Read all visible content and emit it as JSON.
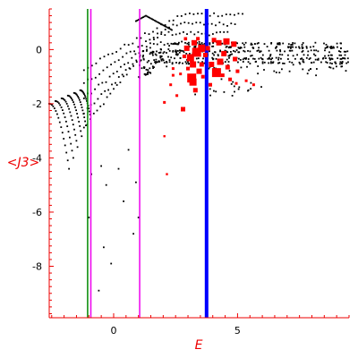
{
  "chart_data": {
    "type": "scatter",
    "xlabel": "E",
    "ylabel": "<J3>",
    "xlim": [
      -2.6,
      9.5
    ],
    "ylim": [
      -9.9,
      1.5
    ],
    "x_ticks": [
      0,
      5
    ],
    "y_ticks": [
      0,
      -2,
      -4,
      -6,
      -8
    ],
    "grid": false,
    "colors": {
      "axes": "#ee0000",
      "black_points": "#000000",
      "red_points": "#ff0000",
      "green_line": "#008800",
      "magenta_line": "#ee00ee",
      "blue_line": "#0000ff"
    },
    "vertical_lines": [
      {
        "name": "",
        "x": -1.05,
        "color": "#008800",
        "width": 1.5
      },
      {
        "name": "",
        "x": -0.92,
        "color": "#ee00ee",
        "width": 1.5
      },
      {
        "name": "",
        "x": 1.05,
        "color": "#ee00ee",
        "width": 1.5
      },
      {
        "name": "",
        "x": 3.75,
        "color": "#0000ff",
        "width": 4
      }
    ],
    "red_points": [
      [
        2.8,
        -2.2,
        2.5
      ],
      [
        3.2,
        -1.2,
        4
      ],
      [
        3.15,
        -1.05,
        5
      ],
      [
        3.45,
        -0.8,
        3
      ],
      [
        3.2,
        -0.55,
        3.5
      ],
      [
        3.1,
        -0.3,
        4
      ],
      [
        3.35,
        -0.1,
        5
      ],
      [
        3.55,
        0.05,
        4
      ],
      [
        3.25,
        0.25,
        3
      ],
      [
        2.95,
        0.05,
        3
      ],
      [
        3.7,
        -0.2,
        2.5
      ],
      [
        3.95,
        -0.55,
        3
      ],
      [
        4.15,
        -0.85,
        5
      ],
      [
        4.3,
        -0.45,
        3.5
      ],
      [
        4.45,
        -0.15,
        3
      ],
      [
        4.6,
        -0.65,
        2.5
      ],
      [
        4.25,
        0.25,
        3
      ],
      [
        4.55,
        0.3,
        3.5
      ],
      [
        4.85,
        0.2,
        3
      ],
      [
        4.9,
        -0.35,
        2.5
      ],
      [
        4.7,
        -1.1,
        2
      ],
      [
        5.0,
        -0.8,
        2
      ],
      [
        3.0,
        -0.7,
        2
      ],
      [
        2.7,
        -0.9,
        1.5
      ],
      [
        2.4,
        -0.95,
        1.5
      ],
      [
        2.55,
        -1.7,
        1.5
      ],
      [
        2.05,
        -1.95,
        1.5
      ],
      [
        2.3,
        -1.3,
        1.5
      ],
      [
        2.05,
        -3.2,
        1.2
      ],
      [
        2.15,
        -4.6,
        1.2
      ],
      [
        3.55,
        -0.55,
        2.5
      ],
      [
        3.8,
        0.05,
        2.5
      ],
      [
        4.05,
        0.35,
        2.5
      ],
      [
        2.85,
        -0.25,
        2
      ],
      [
        3.6,
        -1.0,
        2
      ],
      [
        4.95,
        -1.25,
        1.5
      ],
      [
        5.35,
        -1.15,
        1.5
      ],
      [
        5.65,
        -1.3,
        1.5
      ],
      [
        3.4,
        0.4,
        2
      ],
      [
        2.9,
        0.4,
        1.8
      ],
      [
        2.4,
        -0.7,
        1.5
      ],
      [
        3.9,
        -1.3,
        2
      ],
      [
        3.3,
        -1.5,
        2.5
      ],
      [
        4.4,
        -0.95,
        2
      ]
    ]
  }
}
